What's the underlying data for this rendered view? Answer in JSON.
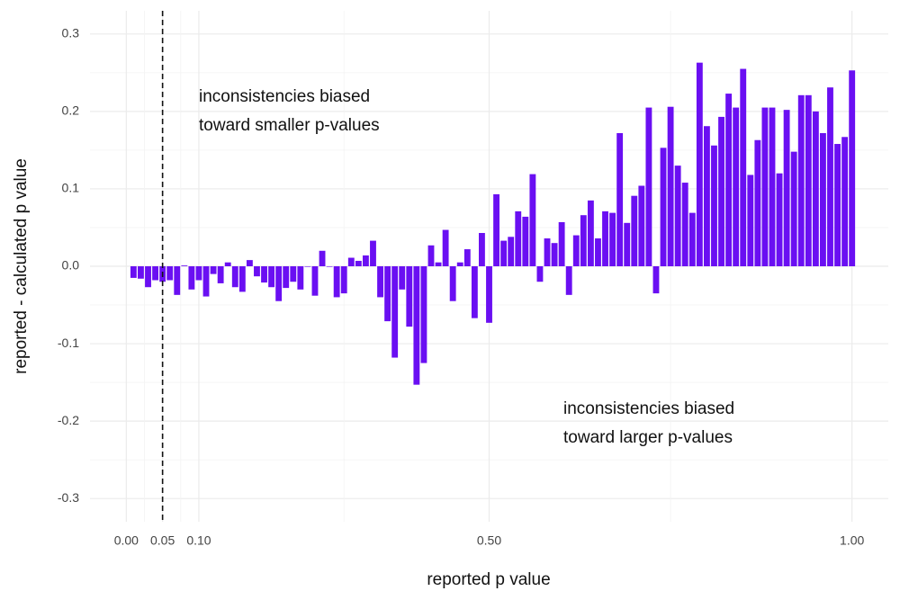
{
  "chart_data": {
    "type": "bar",
    "x_label": "reported p value",
    "y_label": "reported - calculated p value",
    "color": "#6a0ff2",
    "x": [
      0.01,
      0.02,
      0.03,
      0.04,
      0.05,
      0.06,
      0.07,
      0.08,
      0.09,
      0.1,
      0.11,
      0.12,
      0.13,
      0.14,
      0.15,
      0.16,
      0.17,
      0.18,
      0.19,
      0.2,
      0.21,
      0.22,
      0.23,
      0.24,
      0.25,
      0.26,
      0.27,
      0.28,
      0.29,
      0.3,
      0.31,
      0.32,
      0.33,
      0.34,
      0.35,
      0.36,
      0.37,
      0.38,
      0.39,
      0.4,
      0.41,
      0.42,
      0.43,
      0.44,
      0.45,
      0.46,
      0.47,
      0.48,
      0.49,
      0.5,
      0.51,
      0.52,
      0.53,
      0.54,
      0.55,
      0.56,
      0.57,
      0.58,
      0.59,
      0.6,
      0.61,
      0.62,
      0.63,
      0.64,
      0.65,
      0.66,
      0.67,
      0.68,
      0.69,
      0.7,
      0.71,
      0.72,
      0.73,
      0.74,
      0.75,
      0.76,
      0.77,
      0.78,
      0.79,
      0.8,
      0.81,
      0.82,
      0.83,
      0.84,
      0.85,
      0.86,
      0.87,
      0.88,
      0.89,
      0.9,
      0.91,
      0.92,
      0.93,
      0.94,
      0.95,
      0.96,
      0.97,
      0.98,
      0.99,
      1.0
    ],
    "values": [
      -0.015,
      -0.016,
      -0.027,
      -0.018,
      -0.02,
      -0.018,
      -0.037,
      0.001,
      -0.03,
      -0.018,
      -0.039,
      -0.01,
      -0.022,
      0.005,
      -0.027,
      -0.033,
      0.008,
      -0.013,
      -0.021,
      -0.027,
      -0.045,
      -0.028,
      -0.02,
      -0.03,
      0,
      -0.038,
      0.02,
      0,
      -0.04,
      -0.035,
      0.011,
      0.007,
      0.014,
      0.033,
      -0.04,
      -0.071,
      -0.118,
      -0.03,
      -0.078,
      -0.153,
      -0.125,
      0.027,
      0.005,
      0.047,
      -0.045,
      0.005,
      0.022,
      -0.067,
      0.043,
      -0.073,
      0.093,
      0.033,
      0.038,
      0.071,
      0.064,
      0.119,
      -0.02,
      0.036,
      0.03,
      0.057,
      -0.037,
      0.04,
      0.066,
      0.085,
      0.036,
      0.071,
      0.069,
      0.172,
      0.056,
      0.091,
      0.104,
      0.205,
      -0.035,
      0.153,
      0.206,
      0.13,
      0.108,
      0.069,
      0.263,
      0.181,
      0.156,
      0.193,
      0.223,
      0.205,
      0.255,
      0.118,
      0.163,
      0.205,
      0.205,
      0.12,
      0.202,
      0.148,
      0.221,
      0.221,
      0.2,
      0.172,
      0.231,
      0.158,
      0.167,
      0.253
    ],
    "xlim": [
      -0.05,
      1.05
    ],
    "xticks": [
      {
        "value": 0,
        "label": "0.00"
      },
      0.05,
      {
        "value": 0.1,
        "label": "0.10"
      },
      {
        "value": 0.5,
        "label": "0.50"
      },
      {
        "value": 1,
        "label": "1.00"
      }
    ],
    "ylim": [
      -0.33,
      0.33
    ],
    "yticks": [
      -0.3,
      -0.2,
      -0.1,
      {
        "value": 0,
        "label": "0.0"
      },
      0.1,
      0.2,
      0.3
    ],
    "grid": true,
    "vline": 0.05,
    "annotations": [
      {
        "lines": [
          "inconsistencies biased",
          "toward smaller p-values"
        ]
      },
      {
        "lines": [
          "inconsistencies biased",
          "toward larger p-values"
        ]
      }
    ]
  }
}
